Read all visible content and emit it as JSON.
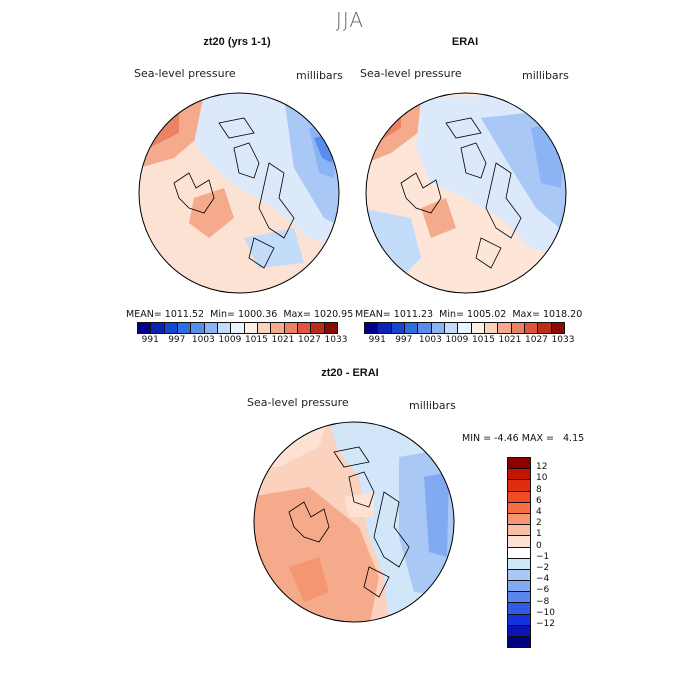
{
  "figure": {
    "season": "JJA"
  },
  "panels": [
    {
      "title": "zt20 (yrs 1-1)",
      "field": "Sea-level pressure",
      "units": "millibars",
      "mean_label": "MEAN=",
      "mean": "1011.52",
      "min_label": "Min=",
      "min": "1000.36",
      "max_label": "Max=",
      "max": "1020.95"
    },
    {
      "title": "ERAI",
      "field": "Sea-level pressure",
      "units": "millibars",
      "mean_label": "MEAN=",
      "mean": "1011.23",
      "min_label": "Min=",
      "min": "1005.02",
      "max_label": "Max=",
      "max": "1018.20"
    }
  ],
  "diff": {
    "title": "zt20 - ERAI",
    "field": "Sea-level pressure",
    "units": "millibars",
    "min_label": "MIN =",
    "min": "-4.46",
    "max_label": "MAX =",
    "max": "4.15"
  },
  "colorbar_top": {
    "colors": [
      "#00008c",
      "#0a23b4",
      "#1446d2",
      "#2d6ee1",
      "#5a8ceb",
      "#8cb4f5",
      "#c3dcfa",
      "#ebf5ff",
      "#fff0e6",
      "#fad2be",
      "#f5aa8c",
      "#eb8264",
      "#e1553c",
      "#be2d19",
      "#8c0a05"
    ],
    "labels": [
      "991",
      "997",
      "1003",
      "1009",
      "1015",
      "1021",
      "1027",
      "1033"
    ]
  },
  "colorbar_diff": {
    "colors": [
      "#8c0000",
      "#c31400",
      "#e12d0f",
      "#f04b23",
      "#f56e46",
      "#f59673",
      "#fabea5",
      "#fde1d2",
      "#ffffff",
      "#d2e6fa",
      "#aac8f5",
      "#82aaf0",
      "#5a87eb",
      "#325ae6",
      "#1432dc",
      "#0a14b4",
      "#000082"
    ],
    "labels": [
      "12",
      "10",
      "8",
      "6",
      "4",
      "2",
      "1",
      "0",
      "−1",
      "−2",
      "−4",
      "−6",
      "−8",
      "−10",
      "−12"
    ]
  }
}
